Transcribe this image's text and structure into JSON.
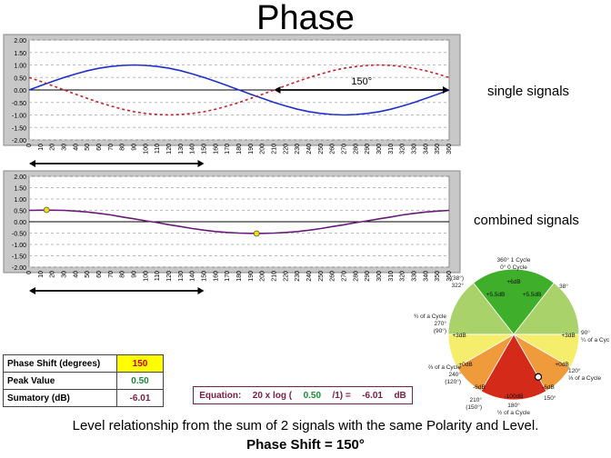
{
  "title": "Phase",
  "labels": {
    "single": "single signals",
    "combined": "combined signals"
  },
  "chart_data": [
    {
      "type": "line",
      "title": "",
      "x": [
        0,
        10,
        20,
        30,
        40,
        50,
        60,
        70,
        80,
        90,
        100,
        110,
        120,
        130,
        140,
        150,
        160,
        170,
        180,
        190,
        200,
        210,
        220,
        230,
        240,
        250,
        260,
        270,
        280,
        290,
        300,
        310,
        320,
        330,
        340,
        350,
        360
      ],
      "xticks": [
        "0",
        "10",
        "20",
        "30",
        "40",
        "50",
        "60",
        "70",
        "80",
        "90",
        "100",
        "110",
        "120",
        "130",
        "140",
        "150",
        "160",
        "170",
        "180",
        "190",
        "200",
        "210",
        "220",
        "230",
        "240",
        "250",
        "260",
        "270",
        "280",
        "290",
        "300",
        "310",
        "320",
        "330",
        "340",
        "350",
        "360"
      ],
      "xlim": [
        0,
        360
      ],
      "ylim": [
        -2,
        2
      ],
      "yticks": [
        "2.00",
        "1.50",
        "1.00",
        "0.50",
        "0.00",
        "-0.50",
        "-1.00",
        "-1.50",
        "-2.00"
      ],
      "grid": true,
      "series": [
        {
          "values": [
            0.0,
            0.17,
            0.34,
            0.5,
            0.64,
            0.77,
            0.87,
            0.94,
            0.98,
            1.0,
            0.98,
            0.94,
            0.87,
            0.77,
            0.64,
            0.5,
            0.34,
            0.17,
            0.0,
            -0.17,
            -0.34,
            -0.5,
            -0.64,
            -0.77,
            -0.87,
            -0.94,
            -0.98,
            -1.0,
            -0.98,
            -0.94,
            -0.87,
            -0.77,
            -0.64,
            -0.5,
            -0.34,
            -0.17,
            0.0
          ],
          "color": "#1f2fd0",
          "style": "solid"
        },
        {
          "values": [
            0.5,
            0.34,
            0.17,
            0.0,
            -0.17,
            -0.34,
            -0.5,
            -0.64,
            -0.77,
            -0.87,
            -0.94,
            -0.98,
            -1.0,
            -0.98,
            -0.94,
            -0.87,
            -0.77,
            -0.64,
            -0.5,
            -0.34,
            -0.17,
            0.0,
            0.17,
            0.34,
            0.5,
            0.64,
            0.77,
            0.87,
            0.94,
            0.98,
            1.0,
            0.98,
            0.94,
            0.87,
            0.77,
            0.64,
            0.5
          ],
          "color": "#c8202a",
          "style": "dashed"
        }
      ],
      "annotations": [
        {
          "text": "150°",
          "from": 210,
          "to": 360,
          "y": 0
        },
        {
          "text": "",
          "from": 0,
          "to": 150,
          "y": -2.4
        }
      ]
    },
    {
      "type": "line",
      "title": "",
      "x": [
        0,
        10,
        20,
        30,
        40,
        50,
        60,
        70,
        80,
        90,
        100,
        110,
        120,
        130,
        140,
        150,
        160,
        170,
        180,
        190,
        200,
        210,
        220,
        230,
        240,
        250,
        260,
        270,
        280,
        290,
        300,
        310,
        320,
        330,
        340,
        350,
        360
      ],
      "xticks": [
        "0",
        "10",
        "20",
        "30",
        "40",
        "50",
        "60",
        "70",
        "80",
        "90",
        "100",
        "110",
        "120",
        "130",
        "140",
        "150",
        "160",
        "170",
        "180",
        "190",
        "200",
        "210",
        "220",
        "230",
        "240",
        "250",
        "260",
        "270",
        "280",
        "290",
        "300",
        "310",
        "320",
        "330",
        "340",
        "350",
        "360"
      ],
      "xlim": [
        0,
        360
      ],
      "ylim": [
        -2,
        2
      ],
      "yticks": [
        "2.00",
        "1.50",
        "1.00",
        "0.50",
        "0.00",
        "-0.50",
        "-1.00",
        "-1.50",
        "-2.00"
      ],
      "grid": true,
      "series": [
        {
          "values": [
            0.5,
            0.51,
            0.51,
            0.5,
            0.47,
            0.43,
            0.37,
            0.3,
            0.21,
            0.13,
            0.04,
            -0.04,
            -0.13,
            -0.21,
            -0.3,
            -0.37,
            -0.43,
            -0.47,
            -0.5,
            -0.51,
            -0.51,
            -0.5,
            -0.47,
            -0.43,
            -0.37,
            -0.3,
            -0.21,
            -0.13,
            -0.04,
            0.04,
            0.13,
            0.21,
            0.3,
            0.37,
            0.43,
            0.47,
            0.5
          ],
          "color": "#6a1a7a",
          "style": "solid"
        }
      ],
      "markers": [
        {
          "x": 15,
          "y": 0.52
        },
        {
          "x": 195,
          "y": -0.52
        }
      ],
      "annotations": [
        {
          "text": "",
          "from": 0,
          "to": 150,
          "y": -2.4
        }
      ]
    }
  ],
  "summary": [
    {
      "label": "Phase Shift (degrees)",
      "value": "150",
      "bg": "#ffff00",
      "color": "#cc0000"
    },
    {
      "label": "Peak Value",
      "value": "0.50",
      "bg": "#ffffff",
      "color": "#1b8a3a"
    },
    {
      "label": "Sumatory (dB)",
      "value": "-6.01",
      "bg": "#ffffff",
      "color": "#7a2040"
    }
  ],
  "equation": {
    "prefix": "Equation:",
    "formula": "20 x log (",
    "value": "0.50",
    "mid": "/1) =",
    "result": "-6.01",
    "unit": "dB"
  },
  "footer": {
    "line1": "Level relationship from the sum of 2 signals with the same Polarity and Level.",
    "line2": "Phase Shift = 150°"
  },
  "wheel": {
    "labels": {
      "top": "360° 1 Cycle\n0° 0 Cycle",
      "p38": "38°",
      "p322": "(38°)\n322°",
      "p90": "90°\n¼ of a Cycle",
      "p270": "¾ of a Cycle\n270°\n(90°)",
      "p120": "120°\n⅓ of a Cycle",
      "p240": "⅔ of a Cycle\n240°\n(120°)",
      "p150": "150°",
      "p210": "210°\n(150°)",
      "bottom": "180°\n½ of a Cycle"
    },
    "levels": [
      "+6dB",
      "+5.5dB",
      "+5.5dB",
      "+3dB",
      "+3dB",
      "+0dB",
      "+0dB",
      "-6dB",
      "-6dB",
      "-100dB"
    ],
    "colors": {
      "green": "#3fae2a",
      "lightgreen": "#a9d36a",
      "yellow": "#f5ee6c",
      "orange": "#ef9a3b",
      "red": "#d42a1a"
    }
  }
}
